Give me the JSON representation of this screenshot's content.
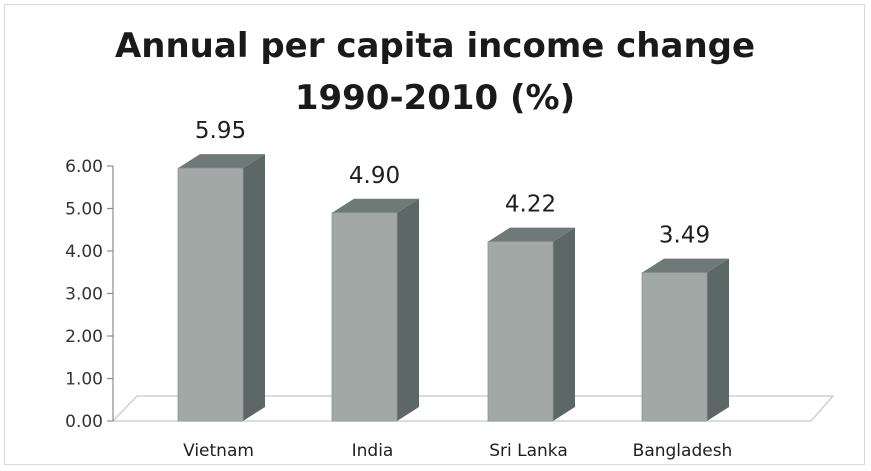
{
  "chart_data": {
    "type": "bar",
    "title_lines": [
      "Annual per capita income change",
      "1990-2010 (%)"
    ],
    "categories": [
      "Vietnam",
      "India",
      "Sri Lanka",
      "Bangladesh"
    ],
    "values": [
      5.95,
      4.9,
      4.22,
      3.49
    ],
    "value_labels": [
      "5.95",
      "4.90",
      "4.22",
      "3.49"
    ],
    "y_ticks": [
      "0.00",
      "1.00",
      "2.00",
      "3.00",
      "4.00",
      "5.00",
      "6.00"
    ],
    "ylim": [
      0,
      6
    ],
    "grid": false,
    "legend": "none",
    "style": "3d-column",
    "colors": {
      "bar_front": "#a2a8a6",
      "bar_side": "#5d6866",
      "bar_top": "#6f7a78",
      "floor_line": "#d0d0d0",
      "axis": "#8c8c8c"
    }
  }
}
